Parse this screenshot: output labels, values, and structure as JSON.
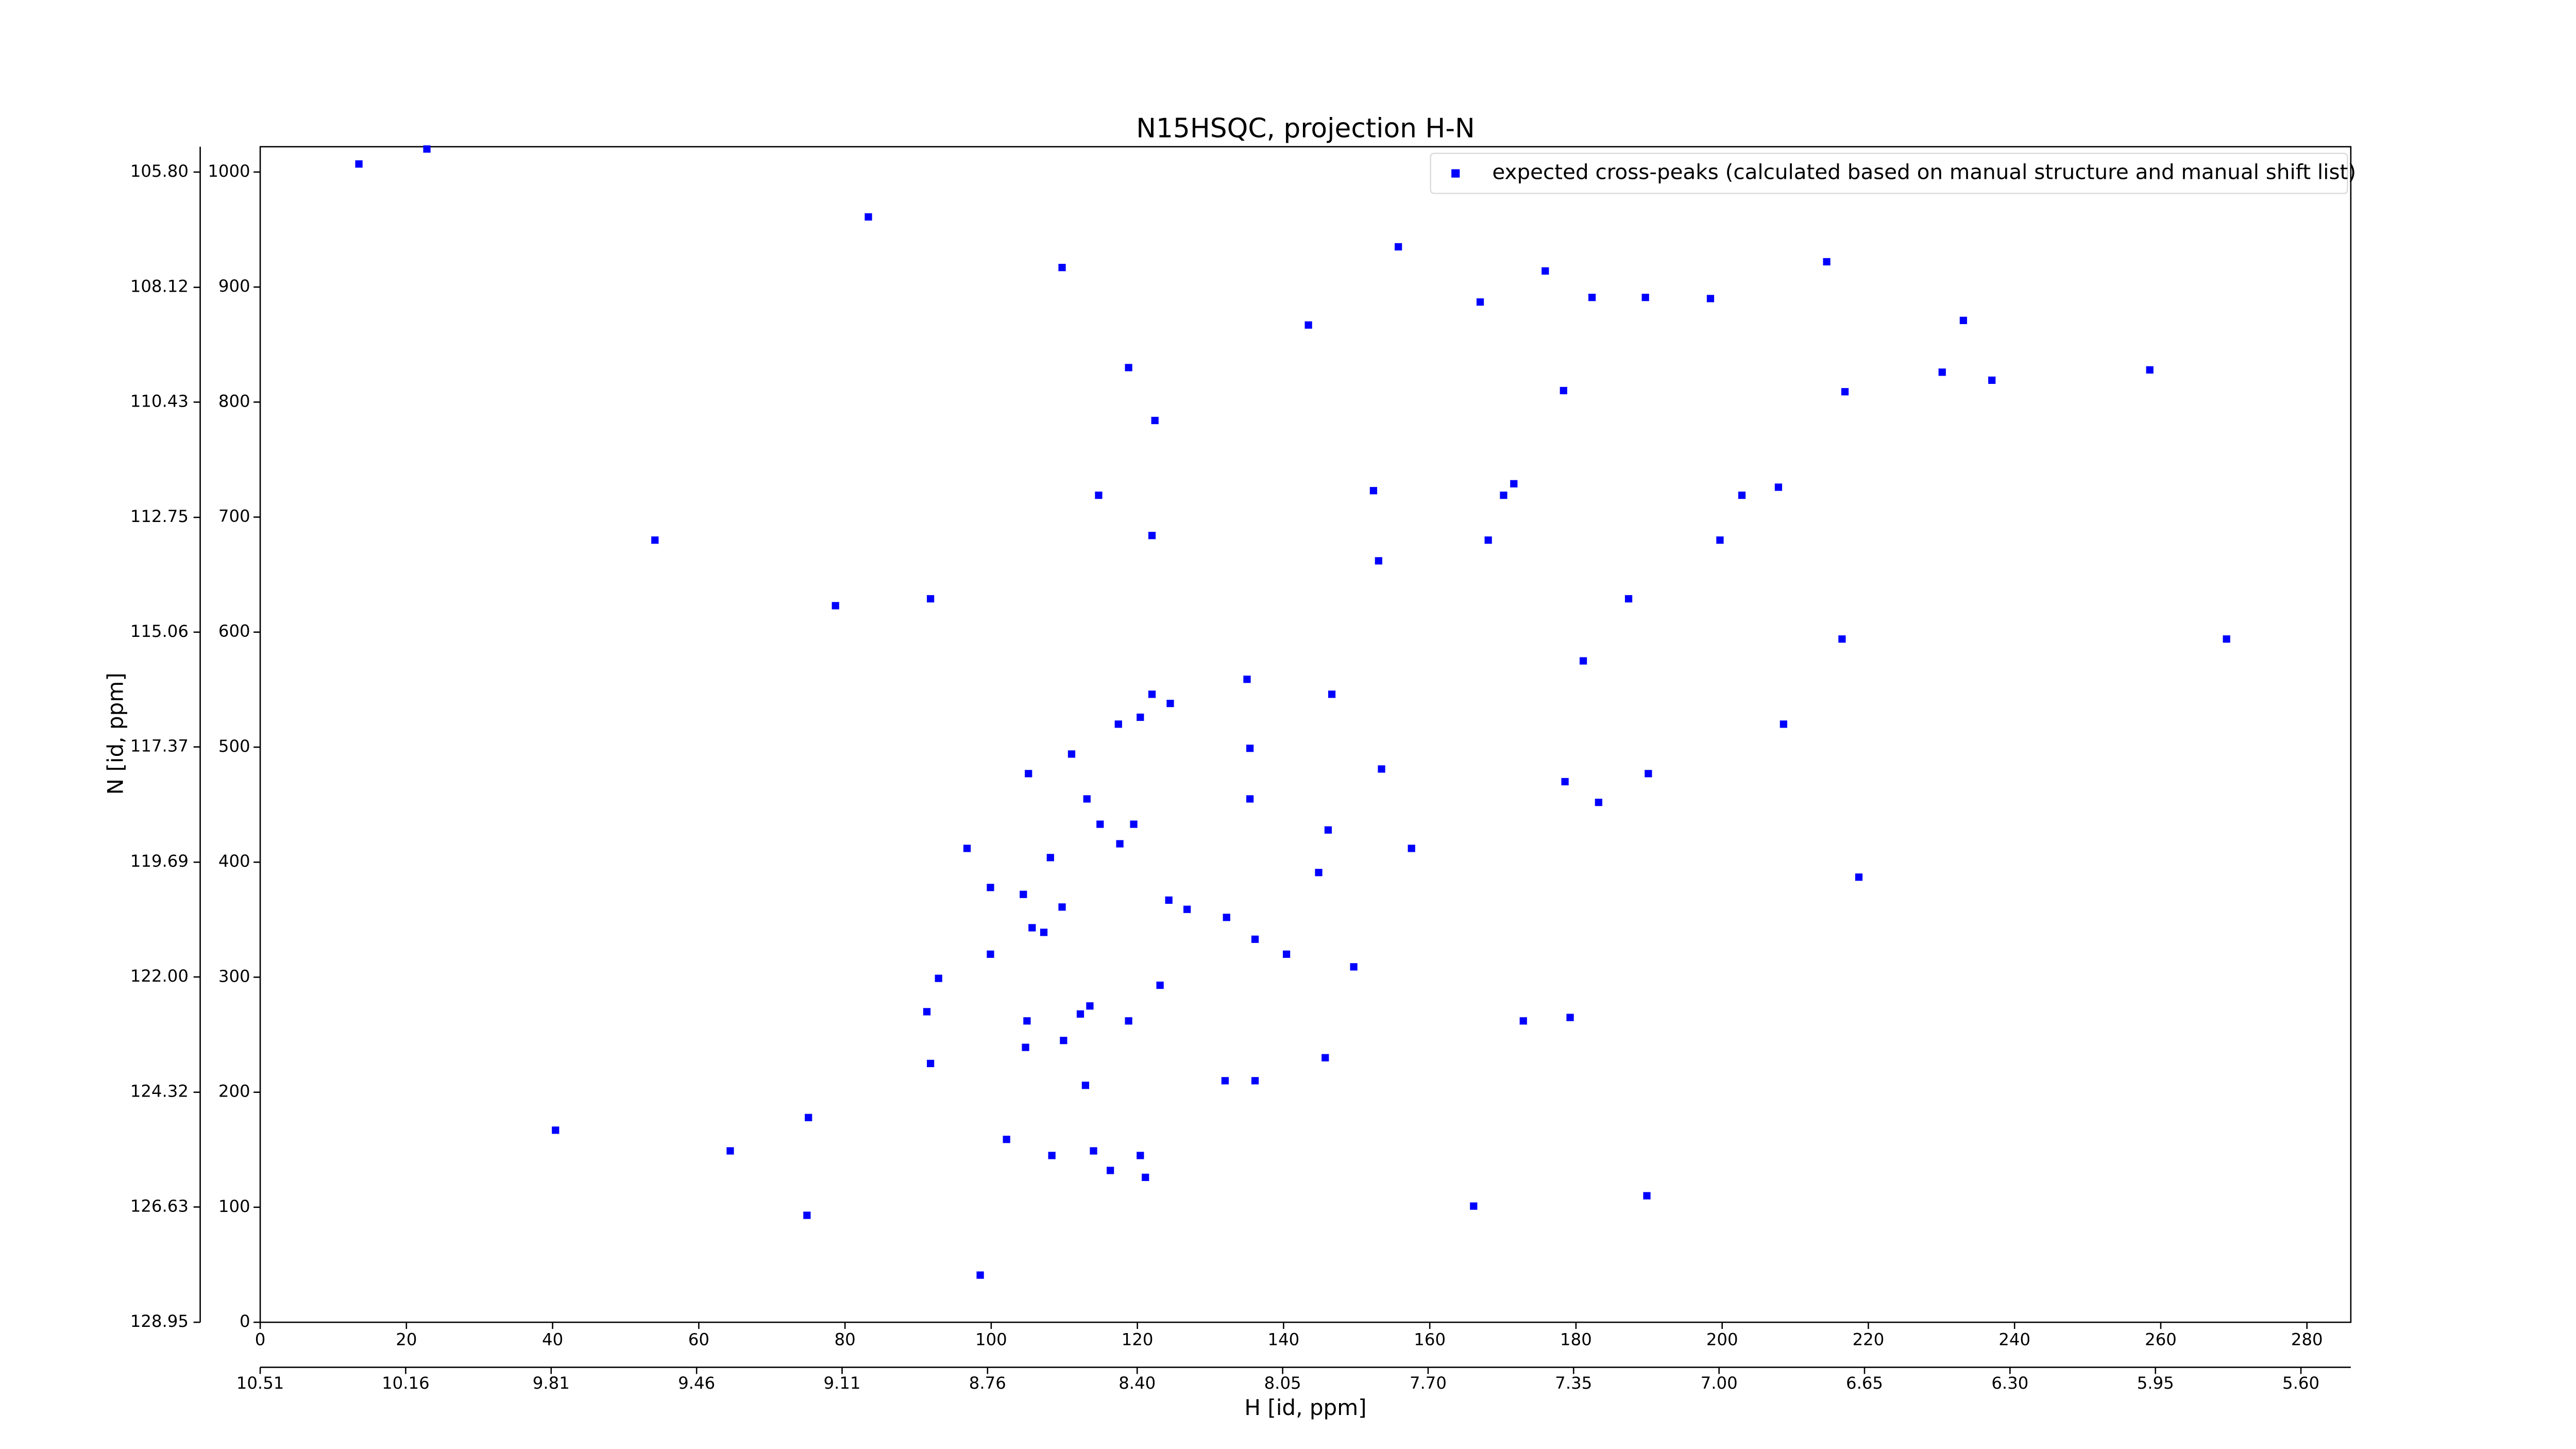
{
  "chart_data": {
    "type": "scatter",
    "title": "N15HSQC, projection H-N",
    "xlabel": "H [id, ppm]",
    "ylabel": "N [id, ppm]",
    "xlim": [
      0,
      286
    ],
    "xticks": [
      0,
      20,
      40,
      60,
      80,
      100,
      120,
      140,
      160,
      180,
      200,
      220,
      240,
      260,
      280
    ],
    "x2lim": [
      10.51,
      5.48
    ],
    "x2ticks": [
      10.51,
      10.16,
      9.81,
      9.46,
      9.11,
      8.76,
      {
        "value": 8.4,
        "label": "8.40"
      },
      8.05,
      {
        "value": 7.7,
        "label": "7.70"
      },
      7.35,
      {
        "value": 7.0,
        "label": "7.00"
      },
      6.65,
      {
        "value": 6.3,
        "label": "6.30"
      },
      5.95,
      {
        "value": 5.6,
        "label": "5.60"
      }
    ],
    "ylim": [
      0,
      1022
    ],
    "yticks": [
      0,
      100,
      200,
      300,
      400,
      500,
      600,
      700,
      800,
      900,
      1000
    ],
    "y2lim": [
      128.95,
      105.29
    ],
    "y2ticks": [
      128.95,
      126.63,
      124.32,
      {
        "value": 122.0,
        "label": "122.00"
      },
      119.69,
      117.37,
      115.06,
      112.75,
      110.43,
      108.12,
      {
        "value": 105.8,
        "label": "105.80"
      }
    ],
    "legend": "upper right",
    "series": [
      {
        "name": "expected cross-peaks (calculated based on manual structure and manual shift list)",
        "color": "#0000ff",
        "x": [
          13.5,
          22.8,
          83.2,
          109.7,
          155.7,
          175.8,
          166.9,
          182.2,
          189.5,
          198.4,
          214.3,
          143.4,
          118.8,
          233.0,
          230.1,
          236.9,
          258.5,
          178.3,
          216.8,
          122.4,
          114.7,
          152.3,
          170.1,
          171.5,
          202.7,
          207.7,
          122.0,
          168.0,
          199.7,
          54.0,
          153.0,
          78.7,
          91.7,
          187.2,
          216.4,
          269.0,
          181.0,
          135.0,
          146.6,
          122.0,
          124.5,
          117.4,
          120.4,
          135.4,
          208.4,
          105.1,
          111.0,
          153.4,
          178.5,
          189.9,
          113.1,
          135.4,
          183.1,
          114.9,
          119.5,
          117.6,
          146.1,
          96.7,
          157.5,
          108.1,
          144.8,
          218.7,
          99.9,
          104.4,
          109.7,
          124.3,
          126.8,
          132.2,
          105.6,
          107.2,
          99.9,
          136.1,
          140.4,
          123.1,
          149.6,
          92.8,
          91.2,
          104.9,
          113.5,
          118.8,
          112.2,
          172.8,
          179.2,
          109.9,
          104.7,
          91.7,
          145.7,
          112.9,
          132.0,
          136.1,
          75.0,
          40.4,
          102.1,
          64.3,
          108.3,
          114.0,
          116.3,
          120.4,
          121.1,
          166.0,
          189.7,
          74.8,
          98.5
        ],
        "y": [
          1007,
          1020,
          961,
          917,
          935,
          914,
          887,
          891,
          891,
          890,
          922,
          867,
          830,
          871,
          826,
          819,
          828,
          810,
          809,
          784,
          719,
          723,
          719,
          729,
          719,
          726,
          684,
          680,
          680,
          680,
          662,
          623,
          629,
          629,
          594,
          594,
          575,
          559,
          546,
          546,
          538,
          520,
          526,
          499,
          520,
          477,
          494,
          481,
          470,
          477,
          455,
          455,
          452,
          433,
          433,
          416,
          428,
          412,
          412,
          404,
          391,
          387,
          378,
          372,
          361,
          367,
          359,
          352,
          343,
          339,
          320,
          333,
          320,
          293,
          309,
          299,
          270,
          262,
          275,
          262,
          268,
          262,
          265,
          245,
          239,
          225,
          230,
          206,
          210,
          210,
          178,
          167,
          159,
          149,
          145,
          149,
          132,
          145,
          126,
          101,
          110,
          93,
          41
        ]
      }
    ]
  }
}
